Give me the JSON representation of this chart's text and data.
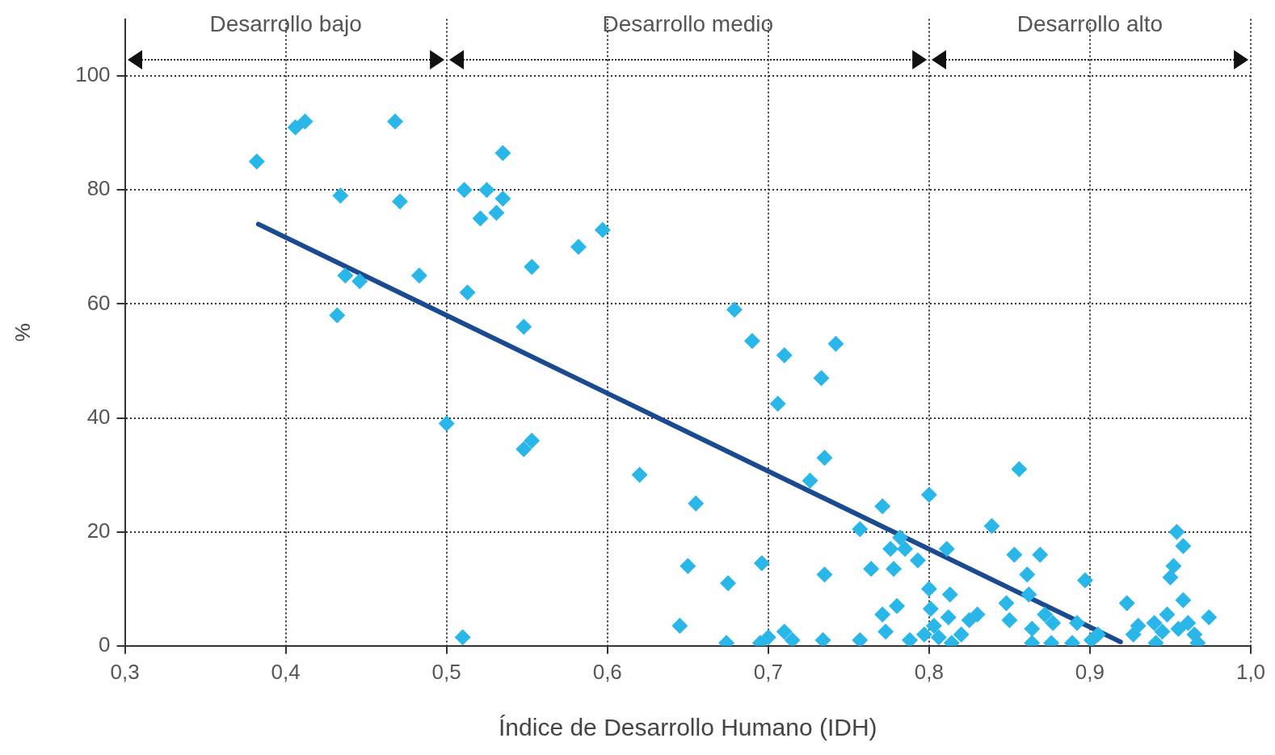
{
  "chart_data": {
    "type": "scatter",
    "xlabel": "Índice de Desarrollo Humano (IDH)",
    "ylabel": "%",
    "xlim": [
      0.3,
      1.0
    ],
    "xticks": [
      {
        "value": 0.3,
        "label": "0,3"
      },
      {
        "value": 0.4,
        "label": "0,4"
      },
      {
        "value": 0.5,
        "label": "0,5"
      },
      {
        "value": 0.6,
        "label": "0,6"
      },
      {
        "value": 0.7,
        "label": "0,7"
      },
      {
        "value": 0.8,
        "label": "0,8"
      },
      {
        "value": 0.9,
        "label": "0,9"
      },
      {
        "value": 1.0,
        "label": "1,0"
      }
    ],
    "ylim": [
      0,
      110
    ],
    "yticks": [
      0,
      20,
      40,
      60,
      80,
      100
    ],
    "grid": true,
    "legend": false,
    "annotations": [
      "Desarrollo bajo",
      "Desarrollo medio",
      "Desarrollo alto"
    ],
    "series": [
      {
        "marker": "diamond",
        "color": "#29b6e8",
        "x": [
          0.382,
          0.406,
          0.412,
          0.468,
          0.434,
          0.471,
          0.437,
          0.446,
          0.432,
          0.483,
          0.5,
          0.511,
          0.513,
          0.525,
          0.521,
          0.531,
          0.535,
          0.535,
          0.553,
          0.548,
          0.548,
          0.553,
          0.582,
          0.597,
          0.51,
          0.62,
          0.655,
          0.65,
          0.645,
          0.675,
          0.679,
          0.69,
          0.696,
          0.71,
          0.706,
          0.674,
          0.695,
          0.7,
          0.71,
          0.715,
          0.733,
          0.735,
          0.735,
          0.742,
          0.726,
          0.734,
          0.757,
          0.757,
          0.764,
          0.771,
          0.771,
          0.773,
          0.776,
          0.778,
          0.78,
          0.782,
          0.785,
          0.788,
          0.793,
          0.8,
          0.797,
          0.8,
          0.801,
          0.803,
          0.806,
          0.811,
          0.813,
          0.812,
          0.814,
          0.82,
          0.825,
          0.83,
          0.839,
          0.848,
          0.85,
          0.853,
          0.856,
          0.861,
          0.862,
          0.864,
          0.864,
          0.869,
          0.872,
          0.877,
          0.876,
          0.889,
          0.892,
          0.897,
          0.901,
          0.905,
          0.923,
          0.927,
          0.93,
          0.94,
          0.941,
          0.945,
          0.948,
          0.95,
          0.952,
          0.954,
          0.958,
          0.958,
          0.955,
          0.961,
          0.965,
          0.967,
          0.974
        ],
        "values": [
          85,
          91,
          92,
          92,
          79,
          78,
          65,
          64,
          58,
          65,
          39,
          80,
          62,
          80,
          75,
          76,
          78.5,
          86.5,
          66.5,
          56,
          34.5,
          36,
          70,
          73,
          1.5,
          30,
          25,
          14,
          3.5,
          11,
          59,
          53.5,
          14.5,
          51,
          42.5,
          0.5,
          0.5,
          1.5,
          2.5,
          1,
          47,
          33,
          12.5,
          53,
          29,
          1,
          20.5,
          1,
          13.5,
          24.5,
          5.5,
          2.5,
          17,
          13.5,
          7,
          19,
          17,
          1,
          15,
          26.5,
          2,
          10,
          6.5,
          3.5,
          1.5,
          17,
          9,
          5,
          0.5,
          2,
          4.5,
          5.5,
          21,
          7.5,
          4.5,
          16,
          31,
          12.5,
          9,
          3,
          0.5,
          16,
          5.5,
          4,
          0.5,
          0.5,
          4,
          11.5,
          1,
          2,
          7.5,
          2,
          3.5,
          4,
          0.5,
          2.5,
          5.5,
          12,
          14,
          20,
          17.5,
          8,
          3,
          4,
          2,
          0.5,
          5
        ]
      },
      {
        "type": "line",
        "color": "#1a4a8f",
        "x": [
          0.383,
          0.919
        ],
        "values": [
          74,
          0.7
        ]
      }
    ]
  }
}
